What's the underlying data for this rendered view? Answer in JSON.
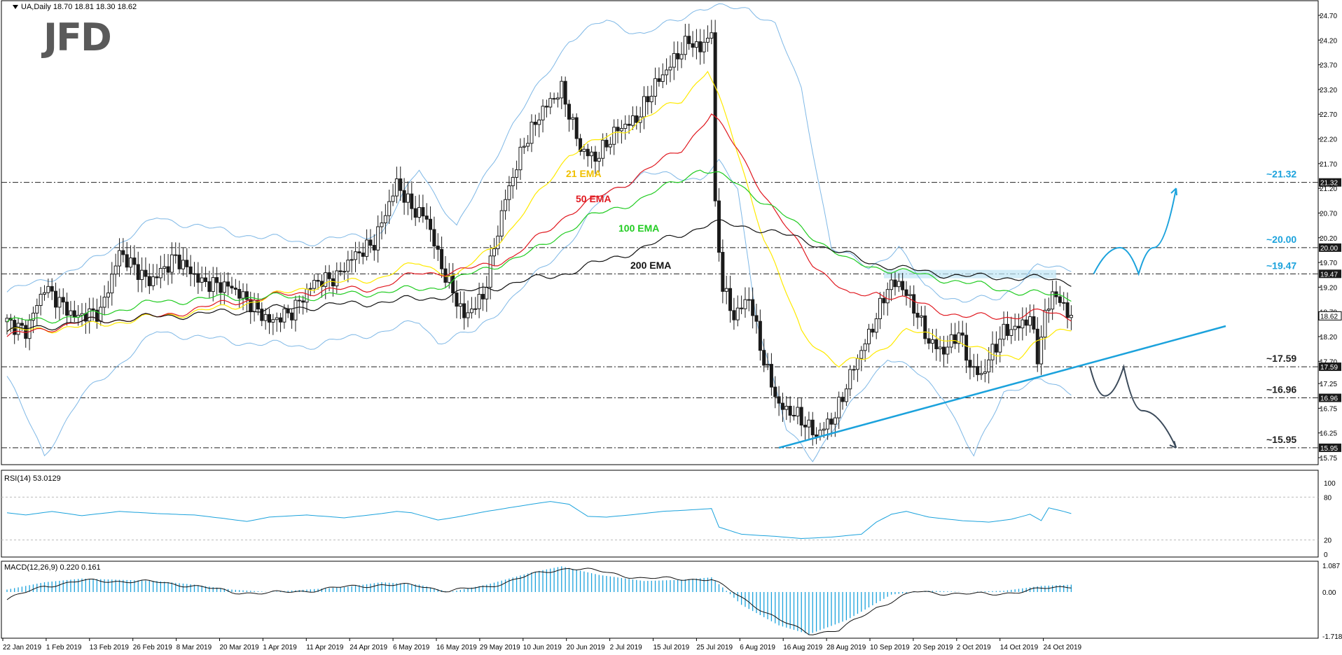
{
  "header": {
    "symbol_label": "UA,Daily",
    "ohlc_values": "18.70 18.81 18.30 18.62",
    "logo": "JFD"
  },
  "rsi_panel": {
    "label": "RSI(14) 53.0129"
  },
  "macd_panel": {
    "label": "MACD(12,26,9) 0.220 0.161"
  },
  "colors": {
    "up_candle": "#ffffff",
    "down_candle": "#1a1a1a",
    "ema21": "#ffea00",
    "ema50": "#e0181f",
    "ema100": "#22cc22",
    "ema200": "#111111",
    "bollinger": "#7fb8e6",
    "trendline": "#1ba2dc",
    "level_label": "#1ba2dc",
    "scenario_down": "#3b4a5a"
  },
  "chart_data": [
    {
      "type": "candlestick",
      "symbol": "UA",
      "timeframe": "Daily",
      "y_ticks": [
        "24.70",
        "24.20",
        "23.70",
        "23.20",
        "22.70",
        "22.20",
        "21.70",
        "21.20",
        "20.70",
        "20.20",
        "19.70",
        "19.20",
        "18.70",
        "18.20",
        "17.70",
        "17.25",
        "16.75",
        "16.25",
        "15.75"
      ],
      "ylim": [
        15.75,
        24.85
      ],
      "x_tick_labels": [
        "22 Jan 2019",
        "1 Feb 2019",
        "13 Feb 2019",
        "26 Feb 2019",
        "8 Mar 2019",
        "20 Mar 2019",
        "1 Apr 2019",
        "11 Apr 2019",
        "24 Apr 2019",
        "6 May 2019",
        "16 May 2019",
        "29 May 2019",
        "10 Jun 2019",
        "20 Jun 2019",
        "2 Jul 2019",
        "15 Jul 2019",
        "25 Jul 2019",
        "6 Aug 2019",
        "16 Aug 2019",
        "28 Aug 2019",
        "10 Sep 2019",
        "20 Sep 2019",
        "2 Oct 2019",
        "14 Oct 2019",
        "24 Oct 2019"
      ],
      "levels": [
        {
          "value": 21.32,
          "label": "~21.32",
          "tag": "21.32",
          "color": "#1ba2dc"
        },
        {
          "value": 20.0,
          "label": "~20.00",
          "tag": "20.00",
          "color": "#1ba2dc"
        },
        {
          "value": 19.47,
          "label": "~19.47",
          "tag": "19.47",
          "color": "#1ba2dc"
        },
        {
          "value": 17.59,
          "label": "~17.59",
          "tag": "17.59",
          "color": "#222222"
        },
        {
          "value": 16.96,
          "label": "~16.96",
          "tag": "16.96",
          "color": "#222222"
        },
        {
          "value": 15.95,
          "label": "~15.95",
          "tag": "15.95",
          "color": "#222222"
        }
      ],
      "last_price_tag": "18.62",
      "ema_labels": [
        {
          "text": "21 EMA",
          "color": "#f0c000"
        },
        {
          "text": "50 EMA",
          "color": "#e0181f"
        },
        {
          "text": "100 EMA",
          "color": "#22cc22"
        },
        {
          "text": "200 EMA",
          "color": "#111111"
        }
      ],
      "candles_anchor": [
        [
          0,
          18.5
        ],
        [
          5,
          18.3
        ],
        [
          10,
          19.2
        ],
        [
          18,
          18.6
        ],
        [
          25,
          18.7
        ],
        [
          30,
          19.9
        ],
        [
          38,
          19.3
        ],
        [
          45,
          19.8
        ],
        [
          52,
          19.3
        ],
        [
          60,
          19.2
        ],
        [
          66,
          18.8
        ],
        [
          70,
          18.5
        ],
        [
          76,
          18.7
        ],
        [
          82,
          19.3
        ],
        [
          88,
          19.4
        ],
        [
          92,
          19.8
        ],
        [
          98,
          20.1
        ],
        [
          104,
          21.3
        ],
        [
          108,
          20.8
        ],
        [
          112,
          20.6
        ],
        [
          116,
          19.6
        ],
        [
          122,
          18.6
        ],
        [
          127,
          19.0
        ],
        [
          133,
          21.0
        ],
        [
          138,
          22.1
        ],
        [
          143,
          22.8
        ],
        [
          148,
          23.2
        ],
        [
          153,
          22.0
        ],
        [
          157,
          21.8
        ],
        [
          163,
          22.4
        ],
        [
          168,
          22.6
        ],
        [
          173,
          23.3
        ],
        [
          178,
          23.8
        ],
        [
          182,
          24.2
        ],
        [
          185,
          24.0
        ],
        [
          188,
          24.4
        ],
        [
          189,
          20.8
        ],
        [
          191,
          19.2
        ],
        [
          194,
          18.6
        ],
        [
          198,
          19.0
        ],
        [
          202,
          17.7
        ],
        [
          206,
          16.8
        ],
        [
          211,
          16.6
        ],
        [
          216,
          16.2
        ],
        [
          221,
          16.6
        ],
        [
          226,
          17.6
        ],
        [
          231,
          18.4
        ],
        [
          235,
          19.2
        ],
        [
          238,
          19.3
        ],
        [
          242,
          18.8
        ],
        [
          246,
          18.1
        ],
        [
          250,
          17.9
        ],
        [
          254,
          18.3
        ],
        [
          257,
          17.6
        ],
        [
          260,
          17.4
        ],
        [
          263,
          17.9
        ],
        [
          266,
          18.3
        ],
        [
          270,
          18.4
        ],
        [
          273,
          18.6
        ],
        [
          275,
          17.8
        ],
        [
          277,
          18.6
        ],
        [
          279,
          19.1
        ],
        [
          282,
          18.8
        ],
        [
          284,
          18.62
        ]
      ],
      "ema21_anchor": [
        [
          0,
          18.3
        ],
        [
          20,
          18.4
        ],
        [
          40,
          18.6
        ],
        [
          60,
          18.8
        ],
        [
          80,
          19.2
        ],
        [
          100,
          19.4
        ],
        [
          110,
          19.7
        ],
        [
          120,
          19.4
        ],
        [
          135,
          20.4
        ],
        [
          150,
          21.9
        ],
        [
          165,
          22.4
        ],
        [
          180,
          23.0
        ],
        [
          187,
          23.6
        ],
        [
          193,
          22.4
        ],
        [
          202,
          20.2
        ],
        [
          212,
          18.3
        ],
        [
          222,
          17.6
        ],
        [
          230,
          17.8
        ],
        [
          240,
          18.3
        ],
        [
          250,
          18.2
        ],
        [
          260,
          17.9
        ],
        [
          270,
          17.8
        ],
        [
          280,
          18.3
        ],
        [
          284,
          18.4
        ]
      ],
      "ema50_anchor": [
        [
          0,
          18.2
        ],
        [
          20,
          18.5
        ],
        [
          40,
          18.6
        ],
        [
          60,
          18.9
        ],
        [
          80,
          19.1
        ],
        [
          100,
          19.2
        ],
        [
          110,
          19.5
        ],
        [
          120,
          19.5
        ],
        [
          135,
          19.8
        ],
        [
          150,
          20.7
        ],
        [
          165,
          21.3
        ],
        [
          180,
          22.0
        ],
        [
          188,
          22.7
        ],
        [
          195,
          22.0
        ],
        [
          205,
          20.7
        ],
        [
          215,
          19.7
        ],
        [
          225,
          19.0
        ],
        [
          232,
          19.1
        ],
        [
          242,
          18.9
        ],
        [
          255,
          18.6
        ],
        [
          268,
          18.6
        ],
        [
          276,
          18.7
        ],
        [
          284,
          18.6
        ]
      ],
      "ema100_anchor": [
        [
          0,
          18.5
        ],
        [
          20,
          18.6
        ],
        [
          40,
          18.9
        ],
        [
          60,
          19.0
        ],
        [
          80,
          19.0
        ],
        [
          100,
          19.1
        ],
        [
          115,
          19.2
        ],
        [
          125,
          19.5
        ],
        [
          140,
          19.9
        ],
        [
          155,
          20.6
        ],
        [
          170,
          21.0
        ],
        [
          185,
          21.6
        ],
        [
          195,
          21.3
        ],
        [
          210,
          20.5
        ],
        [
          225,
          19.7
        ],
        [
          240,
          19.5
        ],
        [
          255,
          19.3
        ],
        [
          270,
          19.1
        ],
        [
          284,
          19.0
        ]
      ],
      "ema200_anchor": [
        [
          0,
          18.3
        ],
        [
          20,
          18.5
        ],
        [
          40,
          18.6
        ],
        [
          60,
          18.7
        ],
        [
          80,
          18.8
        ],
        [
          100,
          18.9
        ],
        [
          115,
          19.0
        ],
        [
          130,
          19.2
        ],
        [
          150,
          19.5
        ],
        [
          170,
          20.0
        ],
        [
          188,
          20.5
        ],
        [
          200,
          20.4
        ],
        [
          215,
          20.1
        ],
        [
          230,
          19.7
        ],
        [
          245,
          19.5
        ],
        [
          260,
          19.4
        ],
        [
          272,
          19.4
        ],
        [
          284,
          19.3
        ]
      ],
      "bb_upper_anchor": [
        [
          0,
          19.1
        ],
        [
          20,
          19.6
        ],
        [
          40,
          20.6
        ],
        [
          60,
          20.3
        ],
        [
          80,
          20.1
        ],
        [
          100,
          20.3
        ],
        [
          110,
          21.6
        ],
        [
          120,
          20.4
        ],
        [
          135,
          22.5
        ],
        [
          150,
          24.2
        ],
        [
          160,
          24.6
        ],
        [
          170,
          24.3
        ],
        [
          185,
          24.85
        ],
        [
          190,
          24.85
        ],
        [
          198,
          24.85
        ],
        [
          205,
          24.5
        ],
        [
          212,
          23.2
        ],
        [
          220,
          20.0
        ],
        [
          230,
          19.6
        ],
        [
          238,
          20.0
        ],
        [
          245,
          19.2
        ],
        [
          255,
          18.9
        ],
        [
          265,
          19.0
        ],
        [
          275,
          19.6
        ],
        [
          284,
          19.6
        ]
      ],
      "bb_lower_anchor": [
        [
          0,
          17.4
        ],
        [
          10,
          15.8
        ],
        [
          20,
          17.0
        ],
        [
          40,
          18.3
        ],
        [
          60,
          18.1
        ],
        [
          80,
          18.0
        ],
        [
          100,
          18.3
        ],
        [
          110,
          18.5
        ],
        [
          115,
          18.1
        ],
        [
          125,
          18.3
        ],
        [
          135,
          19.0
        ],
        [
          150,
          20.1
        ],
        [
          160,
          21.1
        ],
        [
          170,
          21.5
        ],
        [
          185,
          21.4
        ],
        [
          190,
          21.7
        ],
        [
          195,
          21.2
        ],
        [
          200,
          18.6
        ],
        [
          208,
          16.3
        ],
        [
          215,
          15.75
        ],
        [
          228,
          17.1
        ],
        [
          235,
          17.8
        ],
        [
          242,
          17.5
        ],
        [
          250,
          17.0
        ],
        [
          258,
          15.75
        ],
        [
          266,
          17.1
        ],
        [
          276,
          17.3
        ],
        [
          284,
          17.1
        ]
      ],
      "trendline": {
        "from": [
          206,
          15.95
        ],
        "to": [
          310,
          18.6
        ]
      },
      "highlight_zone": [
        19.38,
        19.55
      ],
      "scenario_up_path": [
        [
          290,
          19.47
        ],
        [
          297,
          20.0
        ],
        [
          302,
          19.47
        ],
        [
          306,
          20.0
        ],
        [
          312,
          21.2
        ]
      ],
      "scenario_down_path": [
        [
          289,
          17.59
        ],
        [
          293,
          17.0
        ],
        [
          298,
          17.59
        ],
        [
          303,
          16.7
        ],
        [
          312,
          15.95
        ]
      ]
    },
    {
      "type": "line",
      "name": "RSI(14)",
      "y_ticks": [
        "100",
        "80",
        "20",
        "0"
      ],
      "ylim": [
        0,
        100
      ],
      "values_anchor": [
        [
          0,
          58
        ],
        [
          5,
          55
        ],
        [
          12,
          60
        ],
        [
          20,
          54
        ],
        [
          30,
          60
        ],
        [
          40,
          57
        ],
        [
          50,
          55
        ],
        [
          58,
          50
        ],
        [
          64,
          46
        ],
        [
          70,
          52
        ],
        [
          80,
          55
        ],
        [
          90,
          51
        ],
        [
          100,
          57
        ],
        [
          104,
          60
        ],
        [
          108,
          58
        ],
        [
          115,
          48
        ],
        [
          120,
          52
        ],
        [
          128,
          60
        ],
        [
          135,
          66
        ],
        [
          140,
          70
        ],
        [
          145,
          74
        ],
        [
          150,
          70
        ],
        [
          155,
          53
        ],
        [
          160,
          52
        ],
        [
          168,
          56
        ],
        [
          175,
          60
        ],
        [
          182,
          62
        ],
        [
          188,
          64
        ],
        [
          190,
          38
        ],
        [
          196,
          28
        ],
        [
          205,
          25
        ],
        [
          212,
          22
        ],
        [
          220,
          24
        ],
        [
          228,
          28
        ],
        [
          232,
          45
        ],
        [
          236,
          56
        ],
        [
          240,
          60
        ],
        [
          246,
          52
        ],
        [
          255,
          47
        ],
        [
          262,
          45
        ],
        [
          268,
          49
        ],
        [
          273,
          56
        ],
        [
          276,
          47
        ],
        [
          278,
          65
        ],
        [
          282,
          60
        ],
        [
          284,
          57
        ]
      ]
    },
    {
      "type": "bar_line",
      "name": "MACD(12,26,9)",
      "y_ticks": [
        "1.087",
        "0.00",
        "-1.718"
      ],
      "ylim": [
        -1.718,
        1.087
      ],
      "histogram_anchor": [
        [
          0,
          0.1
        ],
        [
          10,
          0.4
        ],
        [
          20,
          0.55
        ],
        [
          30,
          0.5
        ],
        [
          40,
          0.45
        ],
        [
          50,
          0.3
        ],
        [
          60,
          0.1
        ],
        [
          70,
          0.0
        ],
        [
          80,
          0.1
        ],
        [
          90,
          0.2
        ],
        [
          100,
          0.4
        ],
        [
          110,
          0.3
        ],
        [
          118,
          0.0
        ],
        [
          128,
          0.3
        ],
        [
          140,
          0.8
        ],
        [
          148,
          1.05
        ],
        [
          158,
          0.7
        ],
        [
          170,
          0.45
        ],
        [
          180,
          0.5
        ],
        [
          188,
          0.6
        ],
        [
          196,
          -0.5
        ],
        [
          206,
          -1.3
        ],
        [
          214,
          -1.65
        ],
        [
          224,
          -1.1
        ],
        [
          236,
          -0.1
        ],
        [
          246,
          0.05
        ],
        [
          256,
          0.0
        ],
        [
          266,
          0.05
        ],
        [
          276,
          0.25
        ],
        [
          284,
          0.3
        ]
      ],
      "signal_anchor": [
        [
          0,
          -0.3
        ],
        [
          10,
          0.25
        ],
        [
          20,
          0.45
        ],
        [
          30,
          0.45
        ],
        [
          40,
          0.4
        ],
        [
          50,
          0.25
        ],
        [
          60,
          0.0
        ],
        [
          70,
          -0.05
        ],
        [
          80,
          0.05
        ],
        [
          90,
          0.2
        ],
        [
          100,
          0.3
        ],
        [
          110,
          0.25
        ],
        [
          118,
          0.05
        ],
        [
          128,
          0.2
        ],
        [
          140,
          0.7
        ],
        [
          150,
          1.0
        ],
        [
          160,
          0.8
        ],
        [
          170,
          0.55
        ],
        [
          180,
          0.55
        ],
        [
          188,
          0.5
        ],
        [
          196,
          -0.2
        ],
        [
          206,
          -1.1
        ],
        [
          214,
          -1.6
        ],
        [
          222,
          -1.5
        ],
        [
          232,
          -0.6
        ],
        [
          242,
          0.0
        ],
        [
          252,
          -0.05
        ],
        [
          262,
          -0.1
        ],
        [
          272,
          0.05
        ],
        [
          284,
          0.25
        ]
      ]
    }
  ]
}
